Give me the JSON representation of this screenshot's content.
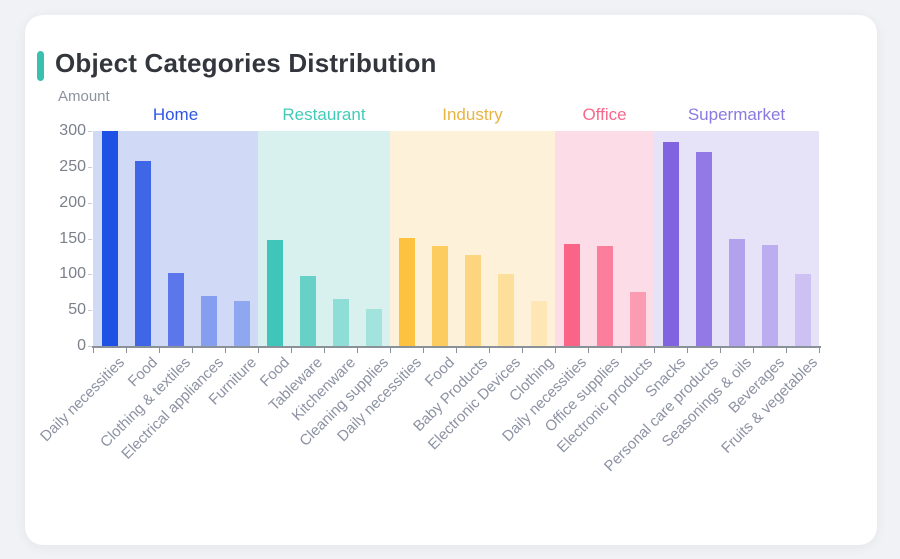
{
  "page": {
    "background": "#f0f2f5",
    "card_background": "#ffffff"
  },
  "header": {
    "title": "Object Categories Distribution",
    "accent_color": "#3ac0ad"
  },
  "chart_data": {
    "type": "bar",
    "title": "Object Categories Distribution",
    "xlabel": "",
    "ylabel": "Amount",
    "ylim": [
      0,
      300
    ],
    "yticks": [
      0,
      50,
      100,
      150,
      200,
      250,
      300
    ],
    "grid": false,
    "legend_position": "top-inline-group-labels",
    "axis_color": "#8b9199",
    "groups": [
      {
        "name": "Home",
        "label_color": "#2e55e6",
        "panel_color": "#d0daf6",
        "bars": [
          {
            "category": "Daily necessities",
            "value": 300,
            "color": "#1e52e4"
          },
          {
            "category": "Food",
            "value": 258,
            "color": "#3f66e7"
          },
          {
            "category": "Clothing & textiles",
            "value": 102,
            "color": "#5b77eb"
          },
          {
            "category": "Electrical appliances",
            "value": 70,
            "color": "#869ef0"
          },
          {
            "category": "Furniture",
            "value": 63,
            "color": "#8fa6f1"
          }
        ]
      },
      {
        "name": "Restaurant",
        "label_color": "#43cbb7",
        "panel_color": "#d9f1ee",
        "bars": [
          {
            "category": "Food",
            "value": 148,
            "color": "#3fc5ba"
          },
          {
            "category": "Tableware",
            "value": 97,
            "color": "#67d1c8"
          },
          {
            "category": "Kitchenware",
            "value": 65,
            "color": "#8eded7"
          },
          {
            "category": "Cleaning supplies",
            "value": 51,
            "color": "#a3e3de"
          }
        ]
      },
      {
        "name": "Industry",
        "label_color": "#e8b440",
        "panel_color": "#fdf2d9",
        "bars": [
          {
            "category": "Daily necessities",
            "value": 150,
            "color": "#fdc23f"
          },
          {
            "category": "Food",
            "value": 139,
            "color": "#fdcc60"
          },
          {
            "category": "Baby Products",
            "value": 127,
            "color": "#fdd57e"
          },
          {
            "category": "Electronic Devices",
            "value": 100,
            "color": "#fddf9c"
          },
          {
            "category": "Clothing",
            "value": 63,
            "color": "#fee6b5"
          }
        ]
      },
      {
        "name": "Office",
        "label_color": "#f8688c",
        "panel_color": "#fcdde7",
        "bars": [
          {
            "category": "Daily necessities",
            "value": 142,
            "color": "#fa6487"
          },
          {
            "category": "Office supplies",
            "value": 139,
            "color": "#fb7e9c"
          },
          {
            "category": "Electronic products",
            "value": 75,
            "color": "#fc9cb3"
          }
        ]
      },
      {
        "name": "Supermarket",
        "label_color": "#8a79e0",
        "panel_color": "#e6e2f8",
        "bars": [
          {
            "category": "Snacks",
            "value": 285,
            "color": "#8163e2"
          },
          {
            "category": "Personal care products",
            "value": 271,
            "color": "#9379e6"
          },
          {
            "category": "Seasonings & oils",
            "value": 149,
            "color": "#b2a2ee"
          },
          {
            "category": "Beverages",
            "value": 141,
            "color": "#bcadf0"
          },
          {
            "category": "Fruits & vegetables",
            "value": 101,
            "color": "#cdc1f4"
          }
        ]
      }
    ]
  }
}
